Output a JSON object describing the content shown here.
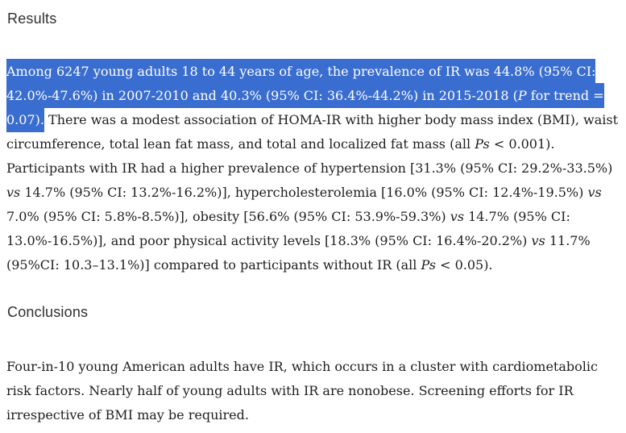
{
  "page": {
    "colors": {
      "background_color": "#ffffff",
      "body_text_color": "#1e1e1e",
      "heading_color": "#303030",
      "selection_color": "#3a6dd0",
      "selection_text_color": "#ffffff"
    }
  },
  "results": {
    "heading": "Results",
    "paragraph": [
      {
        "text": "Among 6247 young adults 18 to 44 years of age, the prevalence of IR was 44.8% (95% CI: 42.0%-47.6%) in 2007-2010 and 40.3% (95% CI: 36.4%-44.2%) in 2015-2018 (",
        "selected": true
      },
      {
        "text": "P",
        "selected": true,
        "italic": true
      },
      {
        "text": " for trend = 0.07).",
        "selected": true
      },
      {
        "text": " There was a modest association of HOMA-IR with higher body mass index (BMI), waist circumference, total lean fat mass, and total and localized fat mass (all "
      },
      {
        "text": "Ps",
        "italic": true
      },
      {
        "text": " < 0.001). Participants with IR had a higher prevalence of hypertension [31.3% (95% CI: 29.2%-33.5%) "
      },
      {
        "text": "vs",
        "italic": true
      },
      {
        "text": " 14.7% (95% CI: 13.2%-16.2%)], hypercholesterolemia [16.0% (95% CI: 12.4%-19.5%) "
      },
      {
        "text": "vs",
        "italic": true
      },
      {
        "text": " 7.0% (95% CI: 5.8%-8.5%)], obesity [56.6% (95% CI: 53.9%-59.3%) "
      },
      {
        "text": "vs",
        "italic": true
      },
      {
        "text": " 14.7% (95% CI: 13.0%-16.5%)], and poor physical activity levels [18.3% (95% CI: 16.4%-20.2%) "
      },
      {
        "text": "vs",
        "italic": true
      },
      {
        "text": " 11.7% (95%CI: 10.3–13.1%)] compared to participants without IR (all "
      },
      {
        "text": "Ps",
        "italic": true
      },
      {
        "text": " < 0.05)."
      }
    ]
  },
  "conclusions": {
    "heading": "Conclusions",
    "paragraph": [
      {
        "text": "Four-in-10 young American adults have IR, which occurs in a cluster with cardiometabolic risk factors. Nearly half of young adults with IR are nonobese. Screening efforts for IR irrespective of BMI may be required."
      }
    ]
  }
}
